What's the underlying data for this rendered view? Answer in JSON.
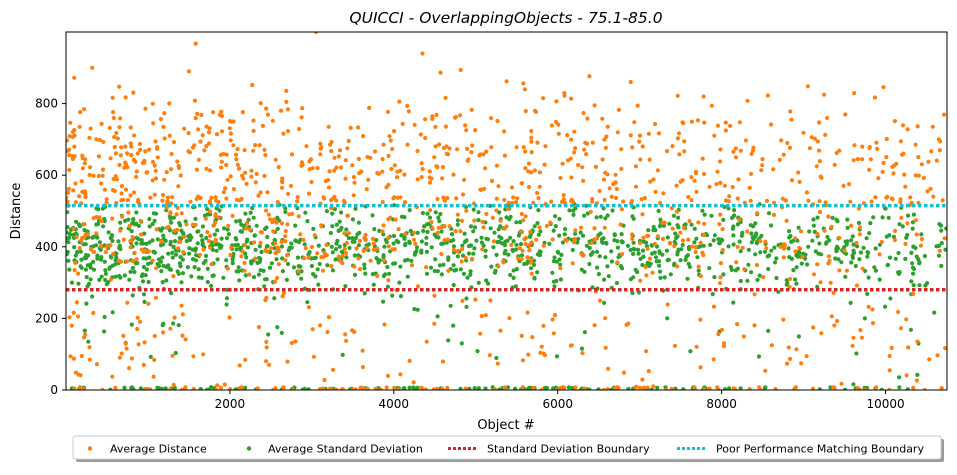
{
  "colors": {
    "average_distance": "#ff7f0e",
    "average_standard_deviation": "#2ca02c",
    "standard_deviation_boundary": "#d62728",
    "poor_performance_matching_boundary": "#17becf"
  },
  "chart_data": {
    "type": "scatter",
    "title": "QUICCI - OverlappingObjects - 75.1-85.0",
    "xlabel": "Object #",
    "ylabel": "Distance",
    "xlim": [
      0,
      10750
    ],
    "ylim": [
      0,
      1000
    ],
    "xticks": [
      2000,
      4000,
      6000,
      8000,
      10000
    ],
    "xtick_labels": [
      "2000",
      "4000",
      "6000",
      "8000",
      "10000"
    ],
    "yticks": [
      0,
      200,
      400,
      600,
      800
    ],
    "ytick_labels": [
      "0",
      "200",
      "400",
      "600",
      "800"
    ],
    "grid": false,
    "legend_position": "bottom-center",
    "num_points_per_series": 1400,
    "series": [
      {
        "name": "Average Distance",
        "kind": "scatter",
        "color": "#ff7f0e",
        "distribution": {
          "high_band": {
            "share": 0.48,
            "mean": 640,
            "sd": 90,
            "min": 520,
            "max": 1000
          },
          "mid_band": {
            "share": 0.32,
            "mean": 420,
            "sd": 60
          },
          "low_band": {
            "share": 0.14,
            "mean": 130,
            "sd": 80
          },
          "near_zero": {
            "share": 0.06,
            "max": 8
          },
          "density_decay_with_x": 0.55
        },
        "sample_points": [
          {
            "x": 100,
            "y": 872
          },
          {
            "x": 320,
            "y": 900
          },
          {
            "x": 1500,
            "y": 890
          },
          {
            "x": 3050,
            "y": 1000
          },
          {
            "x": 4350,
            "y": 940
          },
          {
            "x": 5600,
            "y": 840
          },
          {
            "x": 6450,
            "y": 795
          },
          {
            "x": 9250,
            "y": 825
          },
          {
            "x": 10650,
            "y": 700
          }
        ]
      },
      {
        "name": "Average Standard Deviation",
        "kind": "scatter",
        "color": "#2ca02c",
        "distribution": {
          "main_band": {
            "share": 0.88,
            "mean": 400,
            "sd": 60,
            "min": 200,
            "max": 520
          },
          "low_band": {
            "share": 0.04,
            "mean": 150,
            "sd": 60
          },
          "near_zero": {
            "share": 0.08,
            "max": 8
          },
          "density_decay_with_x": 0.55
        }
      },
      {
        "name": "Standard Deviation Boundary",
        "kind": "hline",
        "style": "dotted",
        "color": "#d62728",
        "y": 280
      },
      {
        "name": "Poor Performance Matching Boundary",
        "kind": "hline",
        "style": "dotted",
        "color": "#17becf",
        "y": 515
      }
    ]
  }
}
